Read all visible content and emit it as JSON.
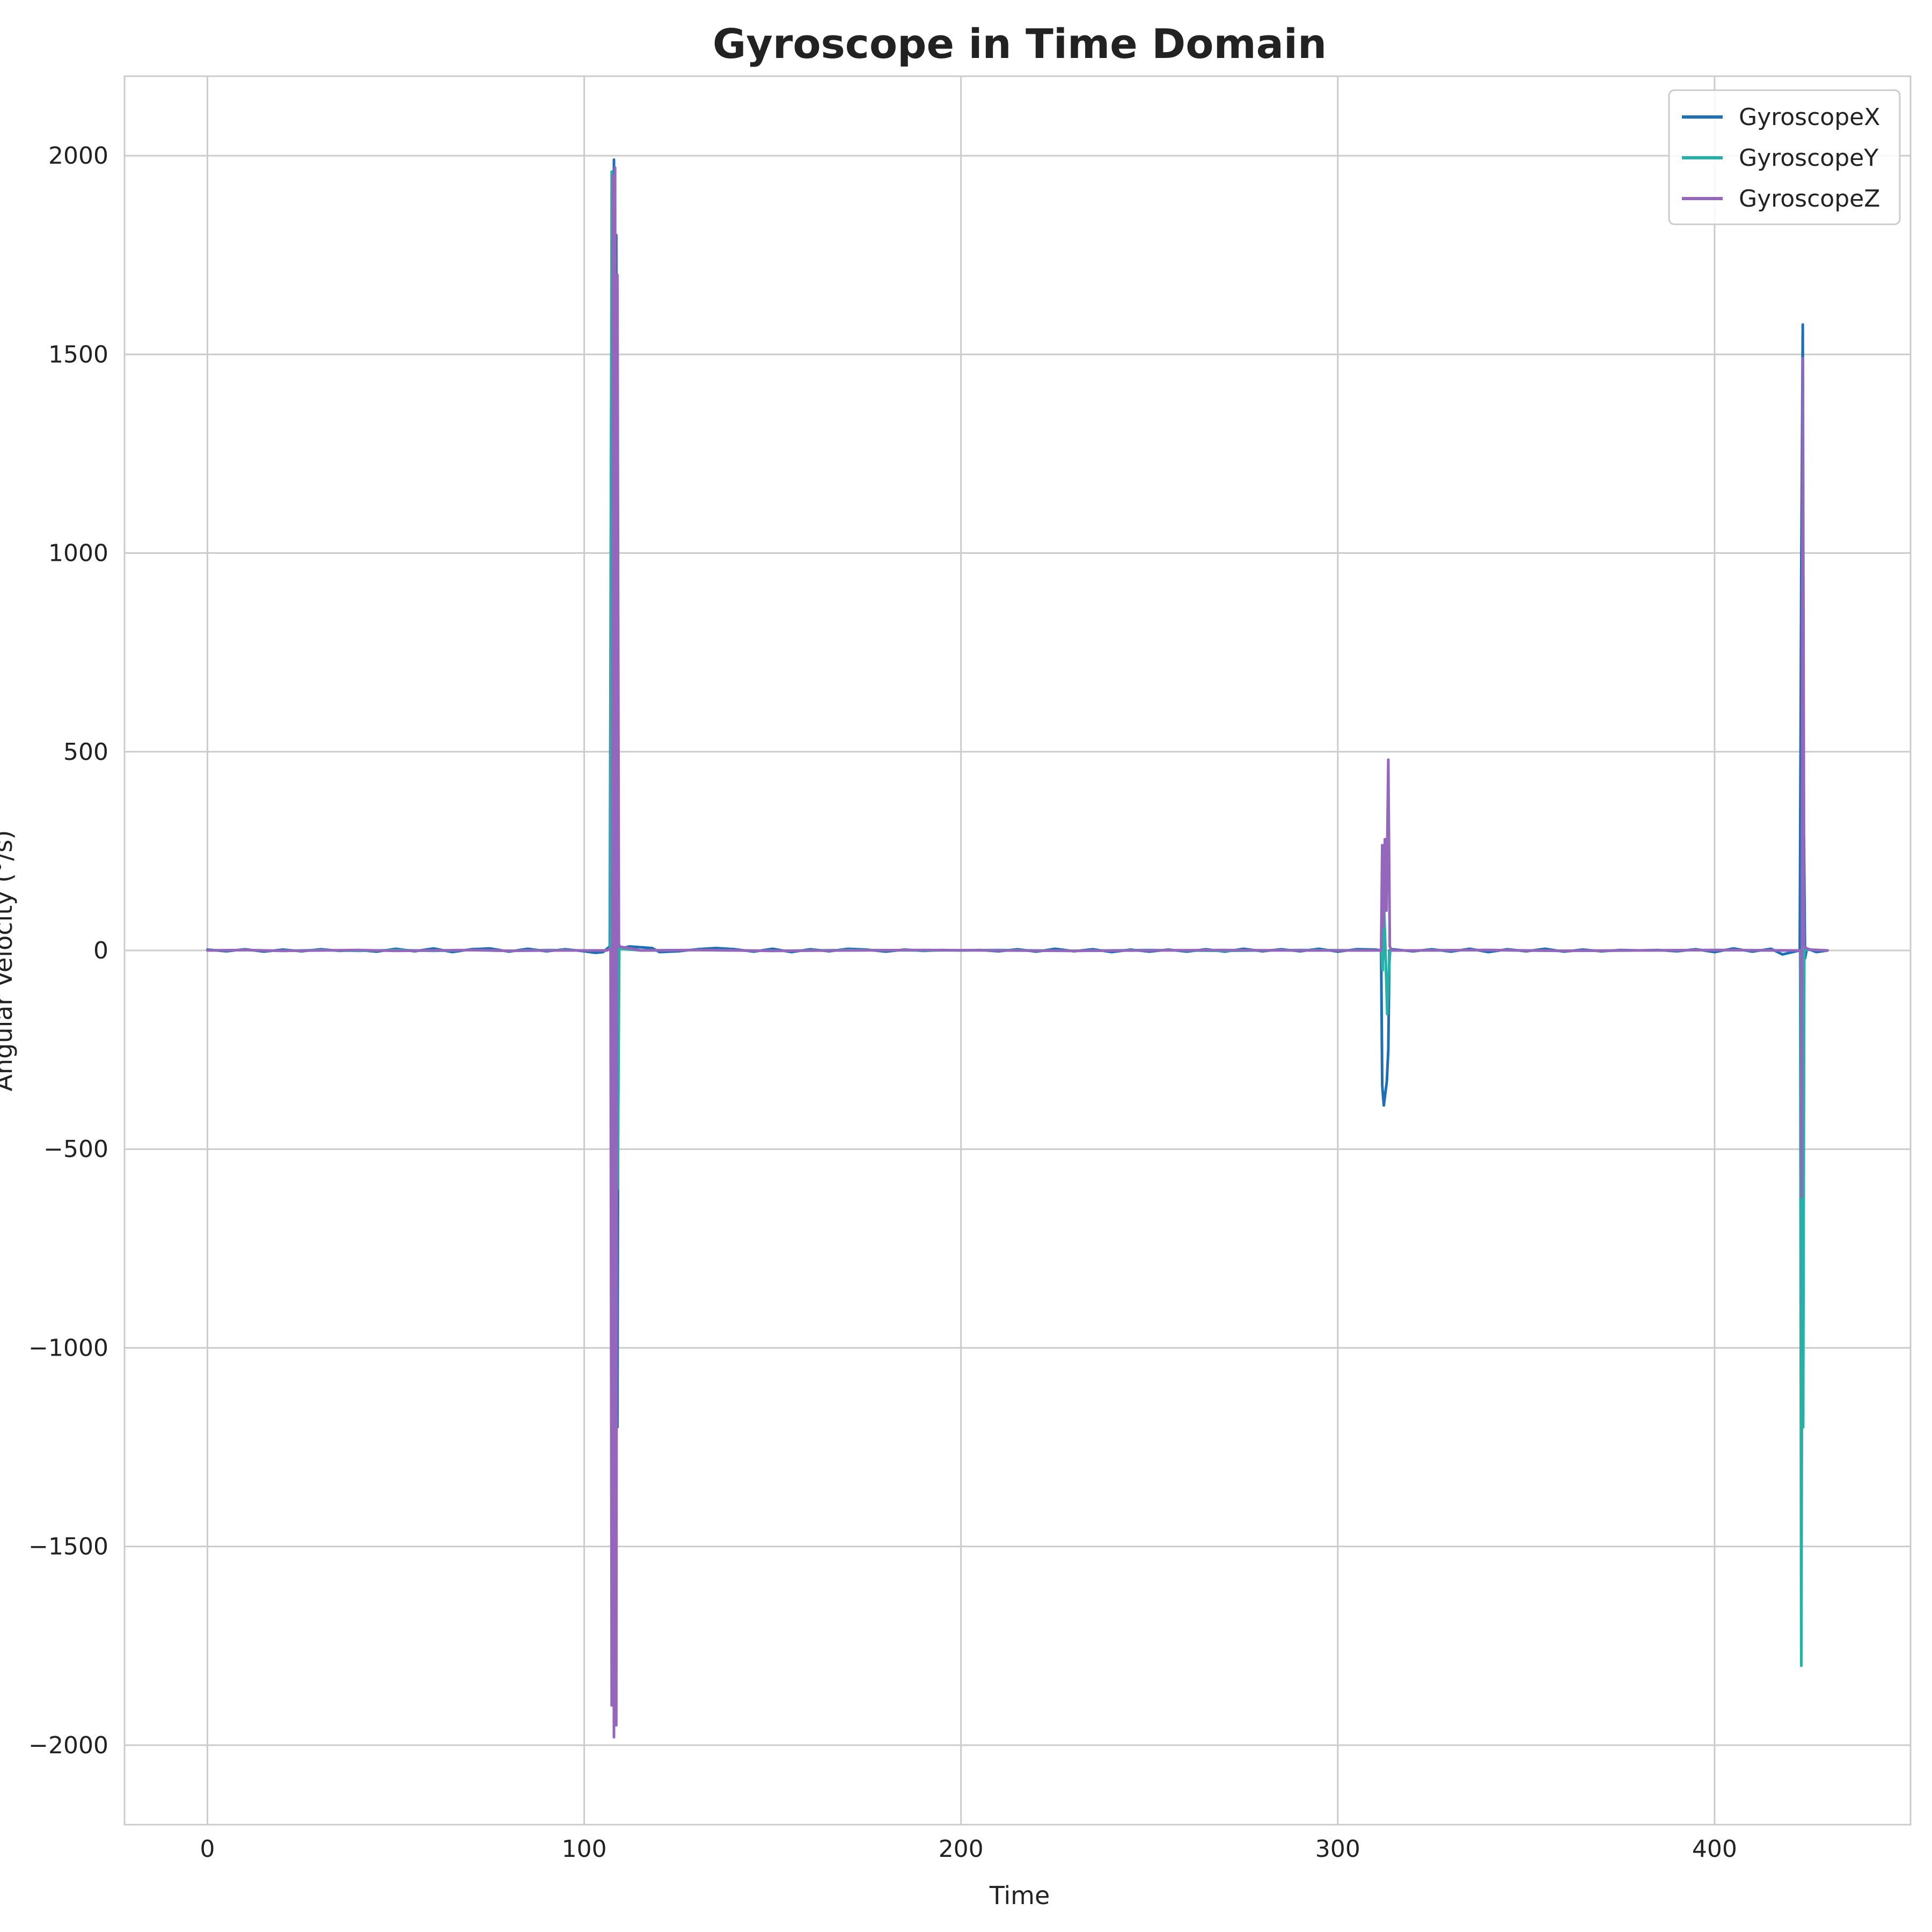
{
  "chart_data": {
    "type": "line",
    "title": "Gyroscope in Time Domain",
    "xlabel": "Time",
    "ylabel": "Angular Velocity (°/s)",
    "xlim": [
      -22,
      452
    ],
    "ylim": [
      -2200,
      2200
    ],
    "xticks": [
      0,
      100,
      200,
      300,
      400
    ],
    "yticks": [
      -2000,
      -1500,
      -1000,
      -500,
      0,
      500,
      1000,
      1500,
      2000
    ],
    "grid": true,
    "legend_position": "top-right",
    "series": [
      {
        "name": "GyroscopeX",
        "color": "#1f6fb4",
        "points": [
          [
            0,
            2
          ],
          [
            5,
            -2
          ],
          [
            10,
            3
          ],
          [
            15,
            -3
          ],
          [
            20,
            2
          ],
          [
            25,
            -2
          ],
          [
            30,
            3
          ],
          [
            35,
            -1
          ],
          [
            40,
            1
          ],
          [
            45,
            -3
          ],
          [
            50,
            4
          ],
          [
            55,
            -2
          ],
          [
            60,
            5
          ],
          [
            65,
            -4
          ],
          [
            70,
            3
          ],
          [
            75,
            5
          ],
          [
            80,
            -3
          ],
          [
            85,
            4
          ],
          [
            90,
            -2
          ],
          [
            95,
            3
          ],
          [
            100,
            -2
          ],
          [
            103,
            -6
          ],
          [
            105,
            -4
          ],
          [
            106.8,
            10
          ],
          [
            107.2,
            1500
          ],
          [
            107.6,
            -1850
          ],
          [
            107.9,
            1990
          ],
          [
            108.2,
            -1700
          ],
          [
            108.5,
            1800
          ],
          [
            108.8,
            -1200
          ],
          [
            109.1,
            20
          ],
          [
            109.5,
            4
          ],
          [
            112,
            10
          ],
          [
            115,
            8
          ],
          [
            118,
            6
          ],
          [
            120,
            -4
          ],
          [
            125,
            -2
          ],
          [
            130,
            3
          ],
          [
            135,
            6
          ],
          [
            140,
            3
          ],
          [
            145,
            -3
          ],
          [
            150,
            4
          ],
          [
            155,
            -4
          ],
          [
            160,
            3
          ],
          [
            165,
            -2
          ],
          [
            170,
            4
          ],
          [
            175,
            2
          ],
          [
            180,
            -3
          ],
          [
            185,
            2
          ],
          [
            190,
            -1
          ],
          [
            195,
            1
          ],
          [
            200,
            0
          ],
          [
            205,
            1
          ],
          [
            210,
            -2
          ],
          [
            215,
            3
          ],
          [
            220,
            -3
          ],
          [
            225,
            4
          ],
          [
            230,
            -2
          ],
          [
            235,
            3
          ],
          [
            240,
            -4
          ],
          [
            245,
            2
          ],
          [
            250,
            -3
          ],
          [
            255,
            2
          ],
          [
            260,
            -3
          ],
          [
            265,
            3
          ],
          [
            270,
            -3
          ],
          [
            275,
            4
          ],
          [
            280,
            -2
          ],
          [
            285,
            3
          ],
          [
            290,
            -2
          ],
          [
            295,
            4
          ],
          [
            300,
            -3
          ],
          [
            305,
            3
          ],
          [
            310,
            2
          ],
          [
            311.5,
            0
          ],
          [
            311.8,
            -340
          ],
          [
            312.2,
            -390
          ],
          [
            312.6,
            -360
          ],
          [
            313.0,
            -330
          ],
          [
            313.4,
            -250
          ],
          [
            313.7,
            0
          ],
          [
            314.2,
            3
          ],
          [
            320,
            -2
          ],
          [
            325,
            3
          ],
          [
            330,
            -3
          ],
          [
            335,
            4
          ],
          [
            340,
            -4
          ],
          [
            345,
            3
          ],
          [
            350,
            -2
          ],
          [
            355,
            4
          ],
          [
            360,
            -3
          ],
          [
            365,
            2
          ],
          [
            370,
            -2
          ],
          [
            375,
            1
          ],
          [
            380,
            0
          ],
          [
            385,
            1
          ],
          [
            390,
            -2
          ],
          [
            395,
            3
          ],
          [
            400,
            -4
          ],
          [
            405,
            5
          ],
          [
            410,
            -3
          ],
          [
            415,
            4
          ],
          [
            418,
            -10
          ],
          [
            422.6,
            0
          ],
          [
            423.0,
            950
          ],
          [
            423.4,
            1575
          ],
          [
            423.7,
            300
          ],
          [
            424.0,
            -20
          ],
          [
            424.5,
            5
          ],
          [
            427,
            -4
          ],
          [
            430,
            0
          ]
        ]
      },
      {
        "name": "GyroscopeY",
        "color": "#26b0a8",
        "points": [
          [
            0,
            0
          ],
          [
            10,
            1
          ],
          [
            20,
            -1
          ],
          [
            30,
            1
          ],
          [
            40,
            -1
          ],
          [
            50,
            1
          ],
          [
            60,
            -1
          ],
          [
            70,
            1
          ],
          [
            80,
            -1
          ],
          [
            90,
            1
          ],
          [
            100,
            0
          ],
          [
            106,
            0
          ],
          [
            106.9,
            5
          ],
          [
            107.3,
            1960
          ],
          [
            107.6,
            -1700
          ],
          [
            107.9,
            1900
          ],
          [
            108.2,
            -1400
          ],
          [
            108.5,
            1500
          ],
          [
            108.9,
            -600
          ],
          [
            109.3,
            5
          ],
          [
            115,
            0
          ],
          [
            130,
            1
          ],
          [
            150,
            -1
          ],
          [
            170,
            1
          ],
          [
            190,
            0
          ],
          [
            210,
            1
          ],
          [
            230,
            -1
          ],
          [
            250,
            1
          ],
          [
            270,
            -1
          ],
          [
            290,
            1
          ],
          [
            310,
            0
          ],
          [
            311.6,
            0
          ],
          [
            311.9,
            -50
          ],
          [
            312.3,
            100
          ],
          [
            312.7,
            -20
          ],
          [
            313.1,
            -160
          ],
          [
            313.5,
            -60
          ],
          [
            313.9,
            0
          ],
          [
            320,
            0
          ],
          [
            340,
            1
          ],
          [
            360,
            -1
          ],
          [
            380,
            0
          ],
          [
            400,
            1
          ],
          [
            420,
            0
          ],
          [
            422.7,
            0
          ],
          [
            423.0,
            -1800
          ],
          [
            423.3,
            -620
          ],
          [
            423.5,
            -1200
          ],
          [
            423.8,
            0
          ],
          [
            425,
            2
          ],
          [
            430,
            0
          ]
        ]
      },
      {
        "name": "GyroscopeZ",
        "color": "#9467bd",
        "points": [
          [
            0,
            0
          ],
          [
            10,
            1
          ],
          [
            20,
            -1
          ],
          [
            30,
            0
          ],
          [
            40,
            1
          ],
          [
            50,
            -1
          ],
          [
            60,
            0
          ],
          [
            70,
            1
          ],
          [
            80,
            -1
          ],
          [
            90,
            0
          ],
          [
            100,
            0
          ],
          [
            106,
            0
          ],
          [
            107.0,
            5
          ],
          [
            107.3,
            -1900
          ],
          [
            107.6,
            1950
          ],
          [
            107.9,
            -1980
          ],
          [
            108.2,
            1970
          ],
          [
            108.5,
            -1950
          ],
          [
            108.8,
            1700
          ],
          [
            109.2,
            10
          ],
          [
            115,
            0
          ],
          [
            130,
            1
          ],
          [
            150,
            -1
          ],
          [
            170,
            0
          ],
          [
            190,
            1
          ],
          [
            210,
            0
          ],
          [
            230,
            -1
          ],
          [
            250,
            0
          ],
          [
            270,
            1
          ],
          [
            290,
            0
          ],
          [
            310,
            0
          ],
          [
            311.5,
            0
          ],
          [
            311.8,
            265
          ],
          [
            312.1,
            60
          ],
          [
            312.5,
            280
          ],
          [
            312.9,
            100
          ],
          [
            313.4,
            480
          ],
          [
            313.8,
            10
          ],
          [
            314.3,
            0
          ],
          [
            320,
            0
          ],
          [
            340,
            1
          ],
          [
            360,
            -1
          ],
          [
            380,
            0
          ],
          [
            400,
            1
          ],
          [
            420,
            0
          ],
          [
            422.8,
            0
          ],
          [
            423.1,
            -620
          ],
          [
            423.4,
            1490
          ],
          [
            423.7,
            10
          ],
          [
            425,
            2
          ],
          [
            430,
            0
          ]
        ]
      }
    ]
  }
}
